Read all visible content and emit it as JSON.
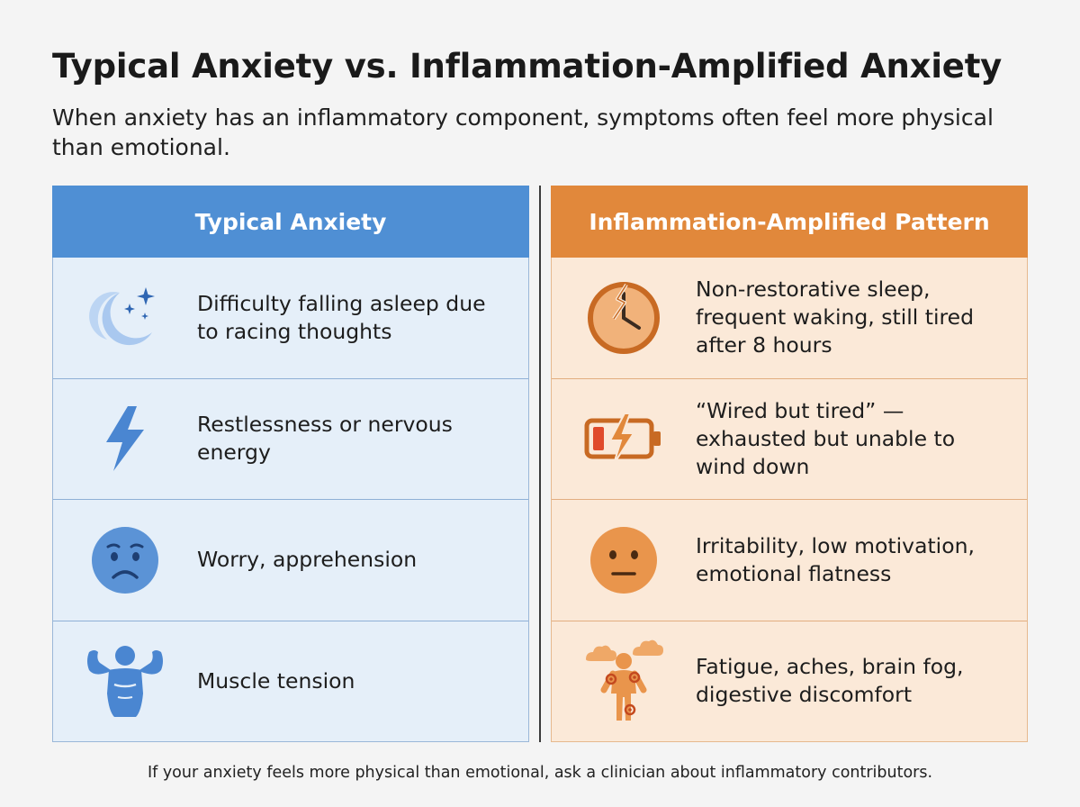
{
  "title": "Typical Anxiety vs. Inflammation-Amplified Anxiety",
  "subtitle": "When anxiety has an inflammatory component, symptoms often feel more physical than emotional.",
  "columns": [
    {
      "header": "Typical Anxiety",
      "color": "#4f8fd4",
      "rows": [
        {
          "icon": "moon-stars-icon",
          "text": "Difficulty falling asleep due to racing thoughts"
        },
        {
          "icon": "lightning-bolt-icon",
          "text": "Restlessness or nervous energy"
        },
        {
          "icon": "worried-face-icon",
          "text": "Worry, apprehension"
        },
        {
          "icon": "flexed-muscles-icon",
          "text": "Muscle tension"
        }
      ]
    },
    {
      "header": "Inflammation-Amplified Pattern",
      "color": "#e1883b",
      "rows": [
        {
          "icon": "cracked-clock-icon",
          "text": "Non-restorative sleep, frequent waking, still tired after 8 hours"
        },
        {
          "icon": "low-battery-icon",
          "text": "“Wired but tired” — exhausted but unable to wind down"
        },
        {
          "icon": "neutral-face-icon",
          "text": "Irritability, low motivation, emotional flatness"
        },
        {
          "icon": "body-aches-fog-icon",
          "text": "Fatigue, aches, brain fog, digestive discomfort"
        }
      ]
    }
  ],
  "footer": "If your anxiety feels more physical than emotional, ask a clinician about inflammatory contributors."
}
